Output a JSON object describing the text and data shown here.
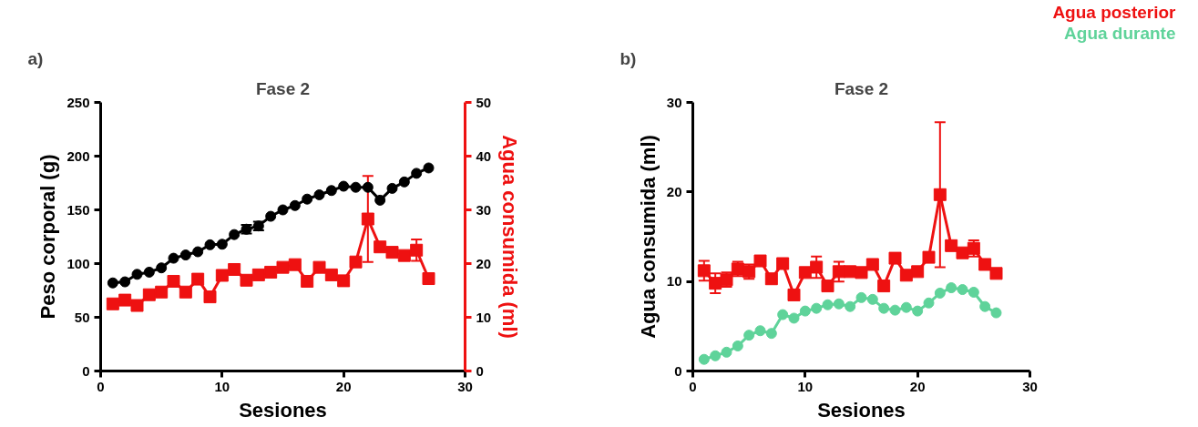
{
  "chart_data": [
    {
      "type": "line",
      "title": "Fase 2",
      "xlabel": "Sesiones",
      "ylabel": "Peso corporal (g)",
      "y2label": "Agua consumida (ml)",
      "annotations": [
        "a)"
      ],
      "x": [
        1,
        2,
        3,
        4,
        5,
        6,
        7,
        8,
        9,
        10,
        11,
        12,
        13,
        14,
        15,
        16,
        17,
        18,
        19,
        20,
        21,
        22,
        23,
        24,
        25,
        26,
        27
      ],
      "xlim": [
        0,
        30
      ],
      "xticks": [
        0,
        10,
        20,
        30
      ],
      "ylim": [
        0,
        250
      ],
      "yticks": [
        0,
        50,
        100,
        150,
        200,
        250
      ],
      "y2lim": [
        0,
        50
      ],
      "y2ticks": [
        0,
        10,
        20,
        30,
        40,
        50
      ],
      "grid": false,
      "series": [
        {
          "color": "#000000",
          "marker": "circle",
          "values": [
            82,
            83,
            90,
            92,
            96,
            105,
            108,
            111,
            117.5,
            118,
            127,
            132,
            135,
            144,
            150,
            154,
            160,
            164,
            168,
            172,
            171,
            171,
            159,
            170,
            176,
            184,
            189
          ],
          "errors": [
            null,
            null,
            null,
            null,
            null,
            null,
            null,
            null,
            null,
            null,
            null,
            4,
            4,
            null,
            null,
            null,
            null,
            null,
            null,
            null,
            null,
            null,
            null,
            null,
            null,
            null,
            null
          ]
        },
        {
          "color": "#ee1111",
          "marker": "square",
          "axis": "y2",
          "values": [
            12.5,
            13.2,
            12.2,
            14.2,
            14.7,
            16.7,
            14.7,
            17.1,
            13.8,
            17.8,
            18.9,
            16.9,
            17.9,
            18.4,
            19.3,
            19.8,
            16.7,
            19.3,
            17.9,
            16.8,
            20.3,
            28.3,
            23.1,
            22.1,
            21.5,
            22.5,
            17.2
          ],
          "errors": [
            null,
            null,
            null,
            null,
            null,
            null,
            null,
            null,
            null,
            null,
            null,
            null,
            null,
            null,
            null,
            null,
            null,
            null,
            null,
            null,
            null,
            8,
            null,
            null,
            null,
            2,
            null
          ]
        }
      ]
    },
    {
      "type": "line",
      "title": "Fase 2",
      "xlabel": "Sesiones",
      "ylabel": "Agua consumida (ml)",
      "annotations": [
        "b)"
      ],
      "x": [
        1,
        2,
        3,
        4,
        5,
        6,
        7,
        8,
        9,
        10,
        11,
        12,
        13,
        14,
        15,
        16,
        17,
        18,
        19,
        20,
        21,
        22,
        23,
        24,
        25,
        26,
        27
      ],
      "xlim": [
        0,
        30
      ],
      "xticks": [
        0,
        10,
        20,
        30
      ],
      "ylim": [
        0,
        30
      ],
      "yticks": [
        0,
        10,
        20,
        30
      ],
      "grid": false,
      "series": [
        {
          "name": "Agua posterior",
          "color": "#ee1111",
          "marker": "square",
          "values": [
            11.2,
            9.8,
            10.2,
            11.4,
            11.1,
            12.3,
            10.3,
            12.0,
            8.5,
            11.0,
            11.6,
            9.5,
            11.1,
            11.1,
            11.0,
            11.9,
            9.5,
            12.6,
            10.7,
            11.1,
            12.7,
            19.7,
            14.0,
            13.2,
            13.7,
            11.9,
            10.9
          ],
          "errors": [
            1.1,
            1.1,
            0.8,
            0.8,
            0.8,
            null,
            null,
            null,
            null,
            null,
            1.2,
            null,
            1.1,
            null,
            null,
            null,
            null,
            null,
            null,
            null,
            null,
            8.1,
            null,
            null,
            0.9,
            null,
            null
          ]
        },
        {
          "name": "Agua durante",
          "color": "#5fd39a",
          "marker": "circle",
          "values": [
            1.3,
            1.7,
            2.1,
            2.8,
            4.0,
            4.5,
            4.2,
            6.3,
            5.9,
            6.7,
            7.0,
            7.4,
            7.5,
            7.2,
            8.2,
            8.0,
            7.0,
            6.8,
            7.1,
            6.7,
            7.6,
            8.7,
            9.3,
            9.1,
            8.8,
            7.2,
            6.5
          ]
        }
      ]
    }
  ]
}
